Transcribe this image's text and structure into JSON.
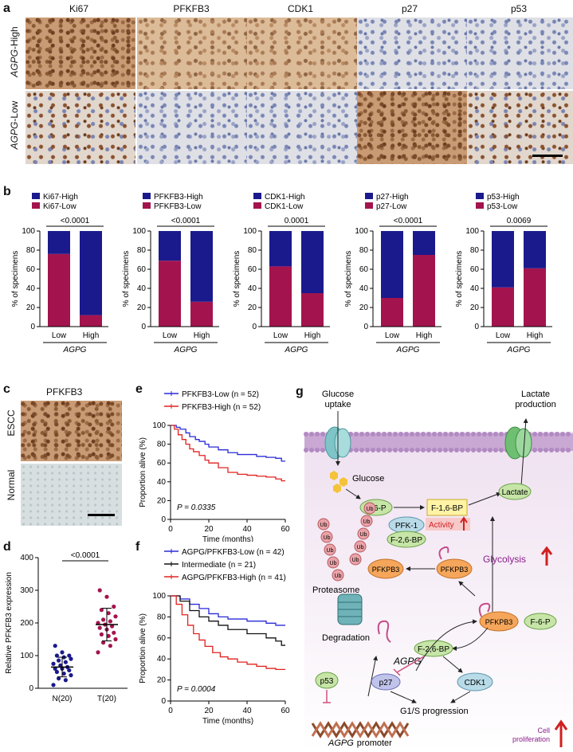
{
  "panels": {
    "a": "a",
    "b": "b",
    "c": "c",
    "d": "d",
    "e": "e",
    "f": "f",
    "g": "g"
  },
  "panel_a": {
    "columns": [
      "Ki67",
      "PFKFB3",
      "CDK1",
      "p27",
      "p53"
    ],
    "rows": [
      "AGPG-High",
      "AGPG-Low"
    ],
    "row_gene": "AGPG",
    "row_suffix": [
      "-High",
      "-Low"
    ]
  },
  "colors": {
    "high": "#1a1a8c",
    "low": "#a3144e",
    "line_blue": "#2a2ad8",
    "line_red": "#e0221e",
    "line_black": "#111111",
    "dot_blue": "#1a1a8c",
    "dot_red": "#a3144e"
  },
  "chart_data": [
    {
      "type": "bar",
      "panel": "b",
      "legend": [
        "Ki67-High",
        "Ki67-Low"
      ],
      "pvalue": "<0.0001",
      "categories": [
        "Low",
        "High"
      ],
      "xlabel": "AGPG",
      "ylabel": "% of specimens",
      "ylim": [
        0,
        100
      ],
      "yticks": [
        0,
        20,
        40,
        60,
        80,
        100
      ],
      "series": [
        {
          "name": "Ki67-Low",
          "values": [
            76,
            12
          ]
        },
        {
          "name": "Ki67-High",
          "values": [
            24,
            88
          ]
        }
      ]
    },
    {
      "type": "bar",
      "panel": "b",
      "legend": [
        "PFKFB3-High",
        "PFKFB3-Low"
      ],
      "pvalue": "<0.0001",
      "categories": [
        "Low",
        "High"
      ],
      "xlabel": "AGPG",
      "ylabel": "% of specimens",
      "ylim": [
        0,
        100
      ],
      "yticks": [
        0,
        20,
        40,
        60,
        80,
        100
      ],
      "series": [
        {
          "name": "PFKFB3-Low",
          "values": [
            69,
            26
          ]
        },
        {
          "name": "PFKFB3-High",
          "values": [
            31,
            74
          ]
        }
      ]
    },
    {
      "type": "bar",
      "panel": "b",
      "legend": [
        "CDK1-High",
        "CDK1-Low"
      ],
      "pvalue": "0.0001",
      "categories": [
        "Low",
        "High"
      ],
      "xlabel": "AGPG",
      "ylabel": "% of specimens",
      "ylim": [
        0,
        100
      ],
      "yticks": [
        0,
        20,
        40,
        60,
        80,
        100
      ],
      "series": [
        {
          "name": "CDK1-Low",
          "values": [
            63,
            35
          ]
        },
        {
          "name": "CDK1-High",
          "values": [
            37,
            65
          ]
        }
      ]
    },
    {
      "type": "bar",
      "panel": "b",
      "legend": [
        "p27-High",
        "p27-Low"
      ],
      "pvalue": "<0.0001",
      "categories": [
        "Low",
        "High"
      ],
      "xlabel": "AGPG",
      "ylabel": "% of specimens",
      "ylim": [
        0,
        100
      ],
      "yticks": [
        0,
        20,
        40,
        60,
        80,
        100
      ],
      "series": [
        {
          "name": "p27-Low",
          "values": [
            30,
            75
          ]
        },
        {
          "name": "p27-High",
          "values": [
            70,
            25
          ]
        }
      ]
    },
    {
      "type": "bar",
      "panel": "b",
      "legend": [
        "p53-High",
        "p53-Low"
      ],
      "pvalue": "0.0069",
      "categories": [
        "Low",
        "High"
      ],
      "xlabel": "AGPG",
      "ylabel": "% of specimens",
      "ylim": [
        0,
        100
      ],
      "yticks": [
        0,
        20,
        40,
        60,
        80,
        100
      ],
      "series": [
        {
          "name": "p53-Low",
          "values": [
            41,
            61
          ]
        },
        {
          "name": "p53-High",
          "values": [
            59,
            39
          ]
        }
      ]
    },
    {
      "type": "scatter",
      "panel": "d",
      "ylabel": "Relative PFKFB3 expression",
      "categories": [
        "N(20)",
        "T(20)"
      ],
      "pvalue": "<0.0001",
      "ylim": [
        0,
        400
      ],
      "yticks": [
        0,
        100,
        200,
        300,
        400
      ],
      "series": [
        {
          "name": "N(20)",
          "values": [
            10,
            25,
            30,
            40,
            45,
            50,
            55,
            60,
            60,
            65,
            70,
            75,
            80,
            85,
            90,
            95,
            100,
            100,
            110,
            130
          ],
          "mean": 65,
          "sd": 30
        },
        {
          "name": "T(20)",
          "values": [
            110,
            130,
            140,
            150,
            160,
            165,
            170,
            180,
            185,
            190,
            195,
            200,
            205,
            210,
            220,
            230,
            240,
            250,
            280,
            300
          ],
          "mean": 195,
          "sd": 50
        }
      ]
    },
    {
      "type": "line",
      "panel": "e",
      "xlabel": "Time (months)",
      "ylabel": "Proportion alive (%)",
      "xlim": [
        0,
        60
      ],
      "ylim": [
        0,
        100
      ],
      "xticks": [
        0,
        20,
        40,
        60
      ],
      "yticks": [
        0,
        20,
        40,
        60,
        80,
        100
      ],
      "pvalue": "P = 0.0335",
      "series": [
        {
          "name": "PFKFB3-Low (n = 52)",
          "x": [
            0,
            3,
            5,
            8,
            10,
            13,
            15,
            18,
            20,
            25,
            30,
            35,
            40,
            45,
            50,
            55,
            58,
            60
          ],
          "y": [
            100,
            98,
            96,
            92,
            88,
            85,
            83,
            80,
            77,
            74,
            71,
            69,
            69,
            67,
            66,
            65,
            62,
            62
          ]
        },
        {
          "name": "PFKFB3-High (n = 52)",
          "x": [
            0,
            2,
            4,
            6,
            8,
            10,
            12,
            15,
            18,
            20,
            25,
            30,
            35,
            40,
            45,
            50,
            55,
            58,
            60
          ],
          "y": [
            100,
            96,
            90,
            85,
            80,
            75,
            72,
            68,
            63,
            60,
            55,
            50,
            48,
            47,
            46,
            45,
            43,
            41,
            41
          ]
        }
      ]
    },
    {
      "type": "line",
      "panel": "f",
      "xlabel": "Time (months)",
      "ylabel": "Proportion alive (%)",
      "xlim": [
        0,
        60
      ],
      "ylim": [
        0,
        100
      ],
      "xticks": [
        0,
        20,
        40,
        60
      ],
      "yticks": [
        0,
        20,
        40,
        60,
        80,
        100
      ],
      "pvalue": "P = 0.0004",
      "series": [
        {
          "name": "AGPG/PFKFB3-Low (n = 42)",
          "x": [
            0,
            5,
            10,
            15,
            20,
            25,
            30,
            40,
            50,
            55,
            60
          ],
          "y": [
            100,
            97,
            92,
            88,
            83,
            80,
            78,
            76,
            74,
            72,
            72
          ]
        },
        {
          "name": "Intermediate (n = 21)",
          "x": [
            0,
            5,
            10,
            15,
            20,
            25,
            30,
            40,
            50,
            55,
            58,
            60
          ],
          "y": [
            100,
            95,
            86,
            80,
            76,
            72,
            68,
            64,
            60,
            57,
            53,
            53
          ]
        },
        {
          "name": "AGPG/PFKFB3-High (n = 41)",
          "x": [
            0,
            3,
            6,
            9,
            12,
            15,
            18,
            22,
            26,
            30,
            35,
            40,
            45,
            50,
            55,
            60
          ],
          "y": [
            100,
            92,
            82,
            72,
            64,
            58,
            52,
            46,
            42,
            40,
            37,
            35,
            33,
            31,
            30,
            30
          ]
        }
      ]
    }
  ],
  "panel_c": {
    "title": "PFKFB3",
    "labels": [
      "ESCC",
      "Normal"
    ]
  },
  "panel_g": {
    "glucose_uptake": [
      "Glucose",
      "uptake"
    ],
    "lactate_production": [
      "Lactate",
      "production"
    ],
    "glucose": "Glucose",
    "f6p": "F-6-P",
    "f16bp": "F-1,6-BP",
    "lactate": "Lactate",
    "pfk1": "PFK-1",
    "activity": "Activity",
    "f26bp": "F-2,6-BP",
    "glycolysis": "Glycolysis",
    "pfkpb3_right": "PFKPB3",
    "pfkpb3_left": "PFKPB3",
    "proteasome": "Proteasome",
    "degradation": "Degradation",
    "ub": "Ub",
    "pfkpb3_center": "PFKPB3",
    "f6p_2": "F-6-P",
    "f26bp_2": "F-2,6-BP",
    "agpg": "AGPG",
    "p53": "p53",
    "p27": "p27",
    "cdk1": "CDK1",
    "g1s": "G1/S  progression",
    "promoter_gene": "AGPG",
    "promoter": "promoter",
    "cell_prolif": [
      "Cell",
      "proliferation"
    ]
  }
}
